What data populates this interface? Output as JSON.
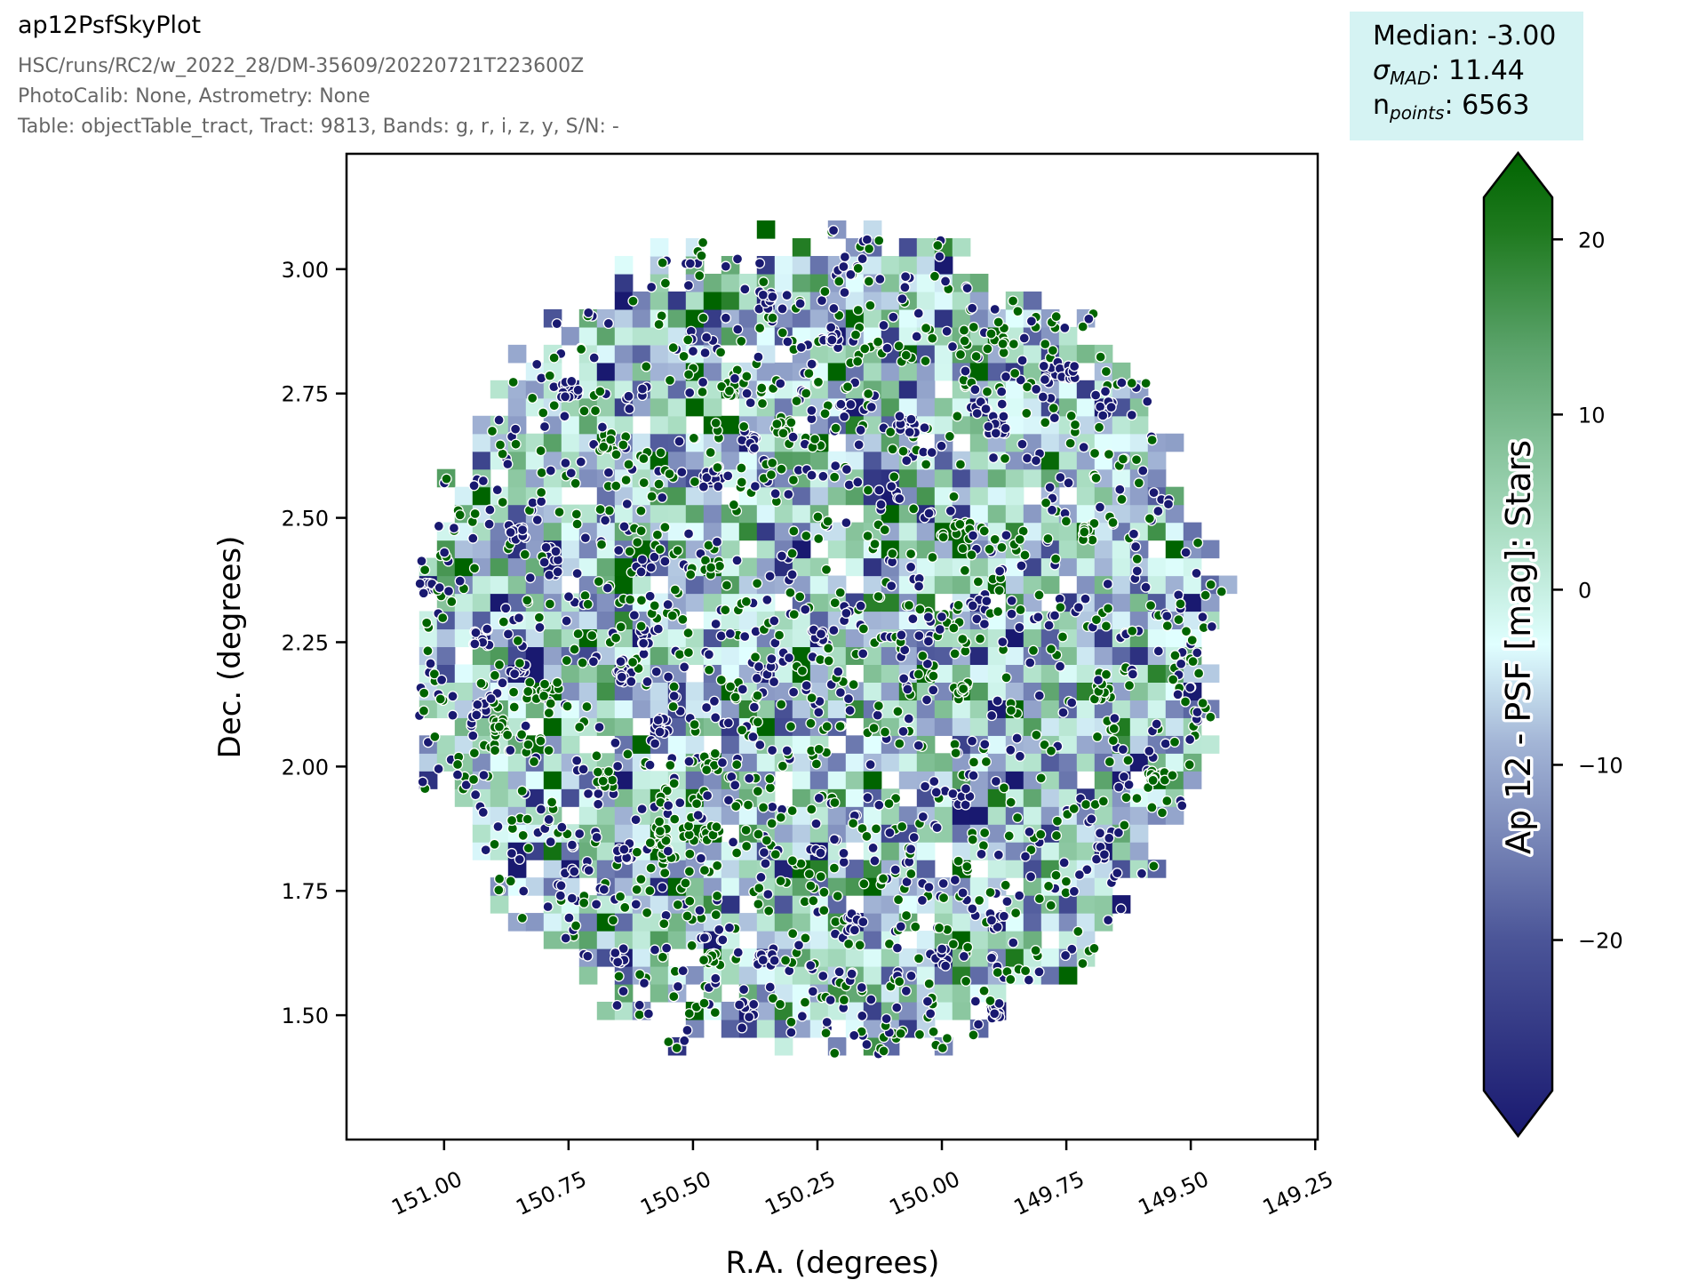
{
  "header": {
    "title": "ap12PsfSkyPlot",
    "lines": [
      "HSC/runs/RC2/w_2022_28/DM-35609/20220721T223600Z",
      "PhotoCalib: None, Astrometry: None",
      "Table: objectTable_tract, Tract: 9813, Bands: g, r, i, z, y, S/N: -"
    ]
  },
  "stats": {
    "median_label": "Median: -3.00",
    "sigma_symbol": "σ",
    "sigma_sub": "MAD",
    "sigma_value": ": 11.44",
    "n_symbol": "n",
    "n_sub": "points",
    "n_value": ": 6563",
    "median": -3.0,
    "sigma_mad": 11.44,
    "n_points": 6563,
    "box_color": "#d5f3f3"
  },
  "chart_data": {
    "type": "heatmap",
    "overlay": "scatter",
    "title": "ap12PsfSkyPlot",
    "xlabel": "R.A. (degrees)",
    "ylabel": "Dec. (degrees)",
    "xlim": [
      151.196,
      149.245
    ],
    "ylim": [
      1.25,
      3.232
    ],
    "x_inverted": true,
    "x_ticks": [
      "151.00",
      "150.75",
      "150.50",
      "150.25",
      "150.00",
      "149.75",
      "149.50",
      "149.25"
    ],
    "x_tick_values": [
      151.0,
      150.75,
      150.5,
      150.25,
      150.0,
      149.75,
      149.5,
      149.25
    ],
    "y_ticks": [
      "1.50",
      "1.75",
      "2.00",
      "2.25",
      "2.50",
      "2.75",
      "3.00"
    ],
    "y_tick_values": [
      1.5,
      1.75,
      2.0,
      2.25,
      2.5,
      2.75,
      3.0
    ],
    "grid": false,
    "data_extent": {
      "ra": [
        151.05,
        149.44
      ],
      "dec": [
        1.42,
        3.07
      ]
    },
    "colorbar": {
      "label": "Ap 12 - PSF [mag]: Stars",
      "ticks": [
        "20",
        "10",
        "0",
        "−10",
        "−20"
      ],
      "tick_values": [
        20,
        10,
        0,
        -10,
        -20
      ],
      "clim": [
        -28.6,
        22.4
      ],
      "extend": "both",
      "colormap": [
        {
          "t": 0.0,
          "color": "#191970"
        },
        {
          "t": 0.2,
          "color": "#4b5598"
        },
        {
          "t": 0.4,
          "color": "#a3b5d6"
        },
        {
          "t": 0.5,
          "color": "#e0ffff"
        },
        {
          "t": 0.62,
          "color": "#a8dcc0"
        },
        {
          "t": 0.8,
          "color": "#5ba36b"
        },
        {
          "t": 0.92,
          "color": "#1f7a1f"
        },
        {
          "t": 1.0,
          "color": "#006400"
        }
      ]
    }
  }
}
